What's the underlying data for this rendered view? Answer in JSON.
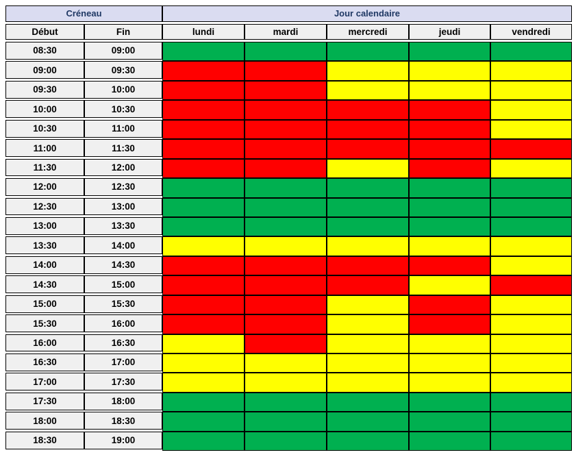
{
  "colors": {
    "page-bg": "#FFFFFF",
    "cell-bg": "#F0F0F0",
    "header-group-bg": "#DADCF1",
    "header-group-text": "#1F3864",
    "border": "#000000"
  },
  "chart_data": {
    "type": "heatmap",
    "col_groups": [
      {
        "label": "Créneau",
        "span": 2
      },
      {
        "label": "Jour calendaire",
        "span": 5
      }
    ],
    "columns": [
      "Début",
      "Fin",
      "lundi",
      "mardi",
      "mercredi",
      "jeudi",
      "vendredi"
    ],
    "color_legend": {
      "green": "#00B050",
      "yellow": "#FFFF00",
      "red": "#FF0000"
    },
    "rows": [
      {
        "debut": "08:30",
        "fin": "09:00",
        "availability": [
          "green",
          "green",
          "green",
          "green",
          "green"
        ]
      },
      {
        "debut": "09:00",
        "fin": "09:30",
        "availability": [
          "red",
          "red",
          "yellow",
          "yellow",
          "yellow"
        ]
      },
      {
        "debut": "09:30",
        "fin": "10:00",
        "availability": [
          "red",
          "red",
          "yellow",
          "yellow",
          "yellow"
        ]
      },
      {
        "debut": "10:00",
        "fin": "10:30",
        "availability": [
          "red",
          "red",
          "red",
          "red",
          "yellow"
        ]
      },
      {
        "debut": "10:30",
        "fin": "11:00",
        "availability": [
          "red",
          "red",
          "red",
          "red",
          "yellow"
        ]
      },
      {
        "debut": "11:00",
        "fin": "11:30",
        "availability": [
          "red",
          "red",
          "red",
          "red",
          "red"
        ]
      },
      {
        "debut": "11:30",
        "fin": "12:00",
        "availability": [
          "red",
          "red",
          "yellow",
          "red",
          "yellow"
        ]
      },
      {
        "debut": "12:00",
        "fin": "12:30",
        "availability": [
          "green",
          "green",
          "green",
          "green",
          "green"
        ]
      },
      {
        "debut": "12:30",
        "fin": "13:00",
        "availability": [
          "green",
          "green",
          "green",
          "green",
          "green"
        ]
      },
      {
        "debut": "13:00",
        "fin": "13:30",
        "availability": [
          "green",
          "green",
          "green",
          "green",
          "green"
        ]
      },
      {
        "debut": "13:30",
        "fin": "14:00",
        "availability": [
          "yellow",
          "yellow",
          "yellow",
          "yellow",
          "yellow"
        ]
      },
      {
        "debut": "14:00",
        "fin": "14:30",
        "availability": [
          "red",
          "red",
          "red",
          "red",
          "yellow"
        ]
      },
      {
        "debut": "14:30",
        "fin": "15:00",
        "availability": [
          "red",
          "red",
          "red",
          "yellow",
          "red"
        ]
      },
      {
        "debut": "15:00",
        "fin": "15:30",
        "availability": [
          "red",
          "red",
          "yellow",
          "red",
          "yellow"
        ]
      },
      {
        "debut": "15:30",
        "fin": "16:00",
        "availability": [
          "red",
          "red",
          "yellow",
          "red",
          "yellow"
        ]
      },
      {
        "debut": "16:00",
        "fin": "16:30",
        "availability": [
          "yellow",
          "red",
          "yellow",
          "yellow",
          "yellow"
        ]
      },
      {
        "debut": "16:30",
        "fin": "17:00",
        "availability": [
          "yellow",
          "yellow",
          "yellow",
          "yellow",
          "yellow"
        ]
      },
      {
        "debut": "17:00",
        "fin": "17:30",
        "availability": [
          "yellow",
          "yellow",
          "yellow",
          "yellow",
          "yellow"
        ]
      },
      {
        "debut": "17:30",
        "fin": "18:00",
        "availability": [
          "green",
          "green",
          "green",
          "green",
          "green"
        ]
      },
      {
        "debut": "18:00",
        "fin": "18:30",
        "availability": [
          "green",
          "green",
          "green",
          "green",
          "green"
        ]
      },
      {
        "debut": "18:30",
        "fin": "19:00",
        "availability": [
          "green",
          "green",
          "green",
          "green",
          "green"
        ]
      }
    ]
  }
}
